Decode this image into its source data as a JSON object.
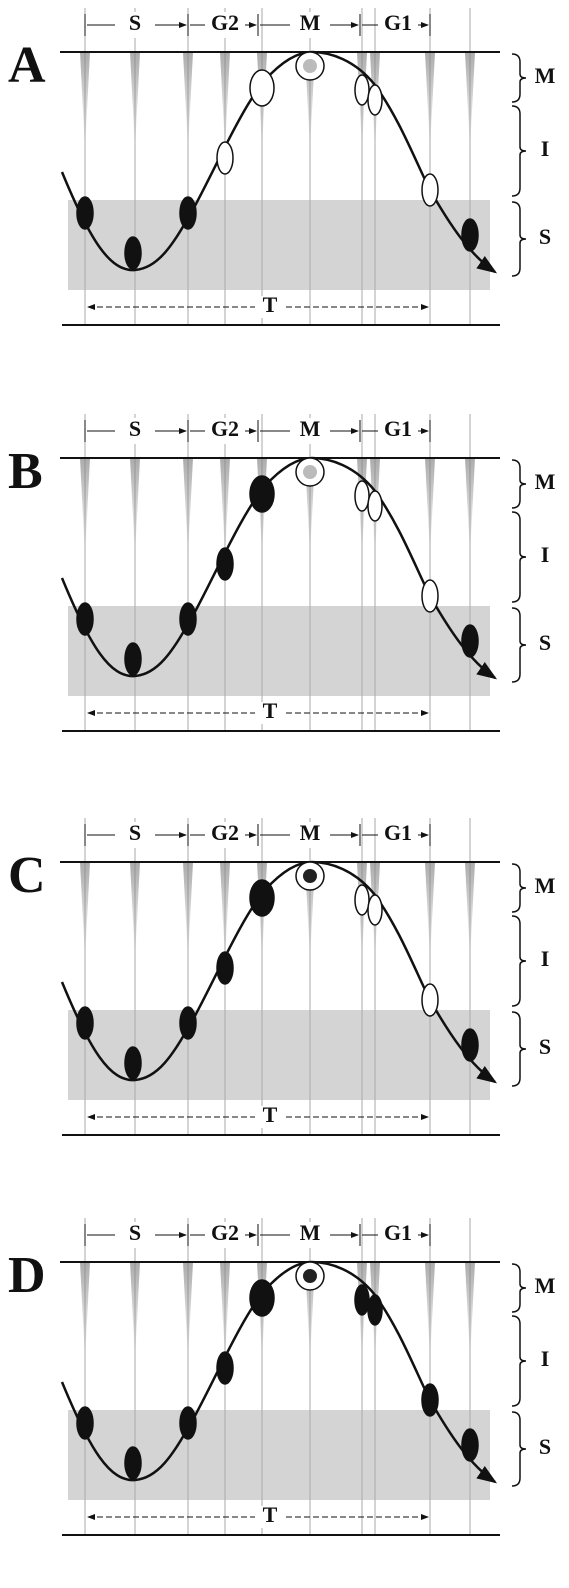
{
  "panels": [
    {
      "label": "A",
      "phases": [
        "S",
        "G2",
        "M",
        "G1"
      ],
      "zones": [
        "M",
        "I",
        "S"
      ],
      "period": "T"
    },
    {
      "label": "B",
      "phases": [
        "S",
        "G2",
        "M",
        "G1"
      ],
      "zones": [
        "M",
        "I",
        "S"
      ],
      "period": "T"
    },
    {
      "label": "C",
      "phases": [
        "S",
        "G2",
        "M",
        "G1"
      ],
      "zones": [
        "M",
        "I",
        "S"
      ],
      "period": "T"
    },
    {
      "label": "D",
      "phases": [
        "S",
        "G2",
        "M",
        "G1"
      ],
      "zones": [
        "M",
        "I",
        "S"
      ],
      "period": "T"
    }
  ]
}
